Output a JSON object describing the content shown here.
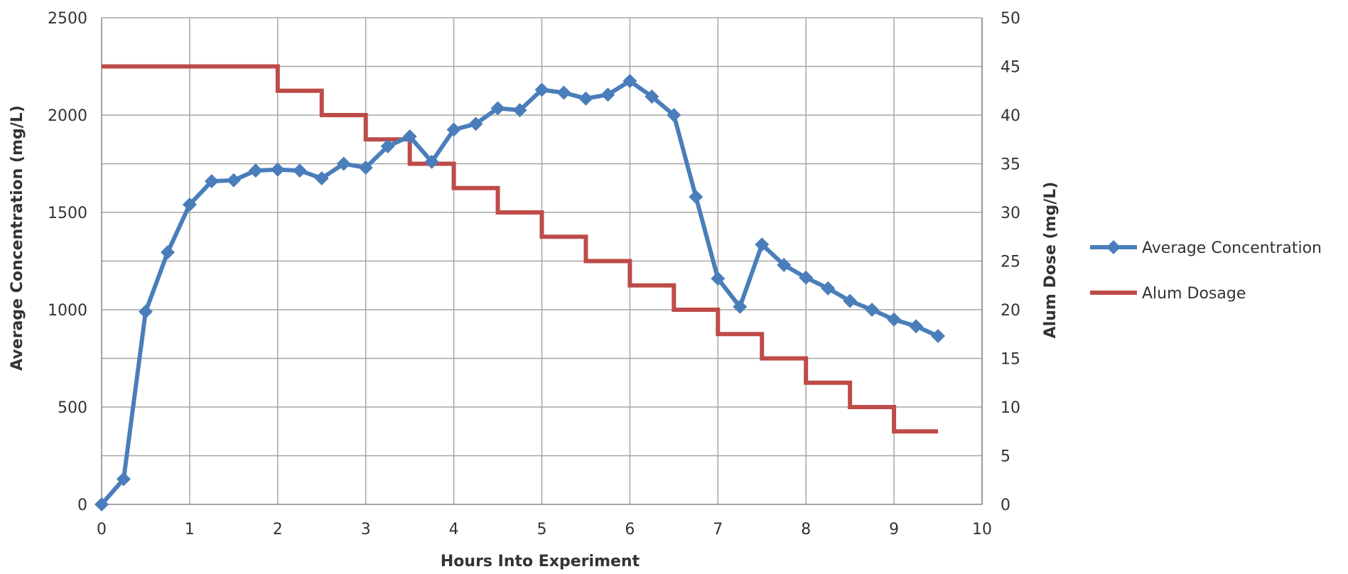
{
  "chart_data": {
    "type": "line",
    "title": "",
    "xlabel": "Hours Into Experiment",
    "ylabel": "Average Concentration (mg/L)",
    "y2label": "Alum Dose (mg/L)",
    "xlim": [
      0,
      10
    ],
    "ylim": [
      0,
      2500
    ],
    "y2lim": [
      0,
      50
    ],
    "x_ticks": [
      "0",
      "1",
      "2",
      "3",
      "4",
      "5",
      "6",
      "7",
      "8",
      "9",
      "10"
    ],
    "y_ticks": [
      "0",
      "500",
      "1000",
      "1500",
      "2000",
      "2500"
    ],
    "y2_ticks": [
      "0",
      "5",
      "10",
      "15",
      "20",
      "25",
      "30",
      "35",
      "40",
      "45",
      "50"
    ],
    "grid": true,
    "legend_position": "right",
    "series": [
      {
        "name": "Average Concentration",
        "axis": "left",
        "color": "#4a7ebb",
        "marker": "diamond",
        "x": [
          0,
          0.25,
          0.5,
          0.75,
          1,
          1.25,
          1.5,
          1.75,
          2,
          2.25,
          2.5,
          2.75,
          3,
          3.25,
          3.5,
          3.75,
          4,
          4.25,
          4.5,
          4.75,
          5,
          5.25,
          5.5,
          5.75,
          6,
          6.25,
          6.5,
          6.75,
          7,
          7.25,
          7.5,
          7.75,
          8,
          8.25,
          8.5,
          8.75,
          9,
          9.25,
          9.5
        ],
        "y": [
          0,
          130,
          990,
          1295,
          1540,
          1660,
          1665,
          1715,
          1720,
          1715,
          1675,
          1750,
          1730,
          1840,
          1890,
          1760,
          1925,
          1955,
          2035,
          2025,
          2130,
          2115,
          2085,
          2105,
          2175,
          2095,
          2000,
          1580,
          1160,
          1015,
          1335,
          1230,
          1165,
          1110,
          1045,
          1000,
          950,
          915,
          865
        ]
      },
      {
        "name": "Alum Dosage",
        "axis": "right",
        "color": "#be4b48",
        "marker": "none",
        "step": true,
        "x": [
          0,
          2,
          2.5,
          3,
          3.5,
          4,
          4.5,
          5,
          5.5,
          6,
          6.5,
          7,
          7.5,
          8,
          8.5,
          9,
          9.5
        ],
        "y": [
          45,
          42.5,
          40,
          37.5,
          35,
          32.5,
          30,
          27.5,
          25,
          22.5,
          20,
          17.5,
          15,
          12.5,
          10,
          7.5,
          7.5
        ]
      }
    ]
  }
}
